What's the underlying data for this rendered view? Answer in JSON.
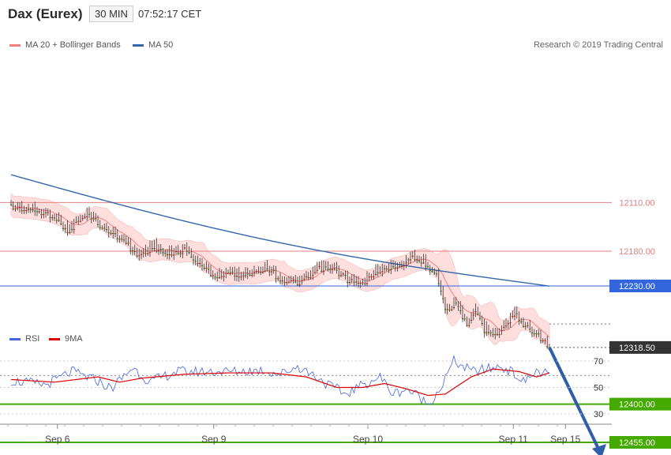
{
  "header": {
    "title": "Dax (Eurex)",
    "interval": "30 MIN",
    "time": "07:52:17 CET"
  },
  "legend": {
    "bollinger": "MA 20 + Bollinger Bands",
    "ma50": "MA 50",
    "rsi": "RSI",
    "rsi_ma": "9MA"
  },
  "copyright": "Research © 2019 Trading Central",
  "colors": {
    "up": "#1a7a1a",
    "down": "#cc1111",
    "bands": "#ffdede",
    "ma20": "#f08080",
    "ma50": "#3366aa",
    "target": "#44aa00",
    "support": "#e08080",
    "pivot": "#3366dd",
    "arrow": "#2f5fa8",
    "rsi": "#4466dd",
    "rsi_ma": "#dd0000"
  },
  "chart_data": [
    {
      "type": "candlestick",
      "title": "Dax (Eurex) 30 MIN",
      "x_labels": [
        "Sep 6",
        "Sep 9",
        "Sep 10",
        "Sep 11",
        "Sep 15"
      ],
      "ylim": [
        12060,
        12520
      ],
      "levels": [
        {
          "label": "12455.00",
          "value": 12455,
          "kind": "target"
        },
        {
          "label": "12400.00",
          "value": 12400,
          "kind": "target"
        },
        {
          "label": "12318.50",
          "value": 12318.5,
          "kind": "current"
        },
        {
          "label": "12230.00",
          "value": 12230,
          "kind": "pivot"
        },
        {
          "label": "12180.00",
          "value": 12180,
          "kind": "support"
        },
        {
          "label": "12110.00",
          "value": 12110,
          "kind": "support"
        }
      ],
      "arrow_from": 12318.5,
      "arrow_to": 12455,
      "close_anchors": [
        [
          0,
          12116
        ],
        [
          10,
          12120
        ],
        [
          20,
          12128
        ],
        [
          26,
          12150
        ],
        [
          30,
          12138
        ],
        [
          36,
          12125
        ],
        [
          42,
          12145
        ],
        [
          50,
          12158
        ],
        [
          58,
          12185
        ],
        [
          66,
          12172
        ],
        [
          72,
          12185
        ],
        [
          80,
          12176
        ],
        [
          86,
          12196
        ],
        [
          94,
          12215
        ],
        [
          100,
          12210
        ],
        [
          106,
          12213
        ],
        [
          112,
          12208
        ],
        [
          118,
          12202
        ],
        [
          124,
          12220
        ],
        [
          130,
          12226
        ],
        [
          136,
          12220
        ],
        [
          142,
          12203
        ],
        [
          150,
          12208
        ],
        [
          156,
          12222
        ],
        [
          162,
          12227
        ],
        [
          168,
          12205
        ],
        [
          172,
          12208
        ],
        [
          176,
          12198
        ],
        [
          180,
          12203
        ],
        [
          184,
          12185
        ],
        [
          190,
          12196
        ],
        [
          196,
          12210
        ],
        [
          200,
          12262
        ],
        [
          206,
          12255
        ],
        [
          210,
          12290
        ],
        [
          214,
          12262
        ],
        [
          218,
          12292
        ],
        [
          224,
          12296
        ],
        [
          228,
          12284
        ],
        [
          232,
          12268
        ],
        [
          236,
          12285
        ],
        [
          242,
          12296
        ],
        [
          248,
          12318.5
        ]
      ],
      "ma50_start": 12070,
      "ma50_end": 12248,
      "band_halfwidth": 22
    },
    {
      "type": "line",
      "title": "RSI",
      "ylim": [
        20,
        80
      ],
      "y_ticks": [
        30,
        50,
        70
      ],
      "ref_line": 59,
      "series": [
        {
          "name": "RSI",
          "anchors": [
            [
              0,
              55
            ],
            [
              16,
              52
            ],
            [
              28,
              62
            ],
            [
              40,
              55
            ],
            [
              46,
              49
            ],
            [
              56,
              65
            ],
            [
              64,
              54
            ],
            [
              76,
              62
            ],
            [
              90,
              62
            ],
            [
              102,
              62
            ],
            [
              116,
              63
            ],
            [
              124,
              60
            ],
            [
              132,
              66
            ],
            [
              140,
              59
            ],
            [
              146,
              52
            ],
            [
              154,
              45
            ],
            [
              162,
              52
            ],
            [
              170,
              58
            ],
            [
              176,
              45
            ],
            [
              182,
              49
            ],
            [
              188,
              43
            ],
            [
              192,
              37
            ],
            [
              198,
              50
            ],
            [
              204,
              70
            ],
            [
              212,
              62
            ],
            [
              220,
              64
            ],
            [
              226,
              66
            ],
            [
              232,
              60
            ],
            [
              236,
              54
            ],
            [
              242,
              62
            ],
            [
              248,
              60
            ]
          ]
        },
        {
          "name": "9MA",
          "anchors": [
            [
              0,
              56
            ],
            [
              20,
              54
            ],
            [
              40,
              58
            ],
            [
              50,
              54
            ],
            [
              60,
              57
            ],
            [
              80,
              60
            ],
            [
              100,
              61
            ],
            [
              120,
              61
            ],
            [
              136,
              58
            ],
            [
              150,
              50
            ],
            [
              162,
              50
            ],
            [
              172,
              53
            ],
            [
              182,
              49
            ],
            [
              192,
              44
            ],
            [
              200,
              45
            ],
            [
              212,
              58
            ],
            [
              222,
              64
            ],
            [
              234,
              62
            ],
            [
              242,
              58
            ],
            [
              248,
              61
            ]
          ]
        }
      ]
    }
  ]
}
